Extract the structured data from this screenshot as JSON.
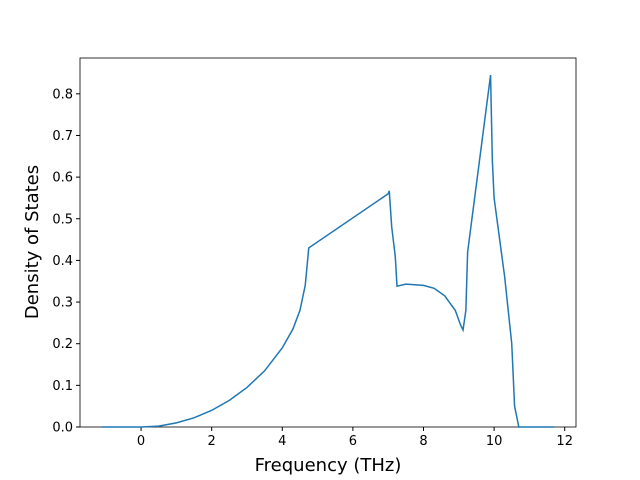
{
  "chart_data": {
    "type": "line",
    "x_label": "Frequency (THz)",
    "y_label": "Density of States",
    "xlim": [
      -1.73,
      12.32
    ],
    "ylim": [
      0,
      0.886
    ],
    "xticks": [
      0,
      2,
      4,
      6,
      8,
      10,
      12
    ],
    "yticks": [
      {
        "value": 0,
        "label": "0.0"
      },
      {
        "value": 0.1,
        "label": "0.1"
      },
      {
        "value": 0.2,
        "label": "0.2"
      },
      {
        "value": 0.3,
        "label": "0.3"
      },
      {
        "value": 0.4,
        "label": "0.4"
      },
      {
        "value": 0.5,
        "label": "0.5"
      },
      {
        "value": 0.6,
        "label": "0.6"
      },
      {
        "value": 0.7,
        "label": "0.7"
      },
      {
        "value": 0.8,
        "label": "0.8"
      }
    ],
    "x": [
      -1.1,
      0,
      0.5,
      1,
      1.5,
      2,
      2.5,
      3,
      3.5,
      4,
      4.3,
      4.5,
      4.65,
      4.75,
      7.0,
      7.03,
      7.1,
      7.2,
      7.25,
      7.5,
      8,
      8.3,
      8.6,
      8.9,
      9.05,
      9.12,
      9.2,
      9.25,
      9.9,
      9.95,
      10.0,
      10.3,
      10.5,
      10.58,
      10.7,
      11.7
    ],
    "series": [
      {
        "color": "#1f77b4",
        "values": [
          0,
          0,
          0.002,
          0.01,
          0.022,
          0.04,
          0.064,
          0.095,
          0.135,
          0.19,
          0.235,
          0.28,
          0.34,
          0.43,
          0.56,
          0.567,
          0.48,
          0.41,
          0.338,
          0.343,
          0.34,
          0.333,
          0.315,
          0.28,
          0.245,
          0.233,
          0.28,
          0.42,
          0.845,
          0.64,
          0.55,
          0.36,
          0.2,
          0.05,
          0,
          0
        ]
      }
    ]
  }
}
